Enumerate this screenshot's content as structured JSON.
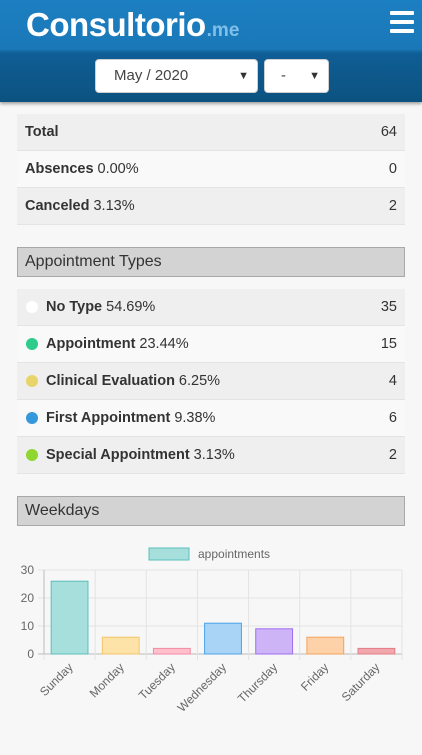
{
  "app": {
    "logo_main": "Consultorio",
    "logo_suffix": ".me"
  },
  "filters": {
    "month": "May / 2020",
    "day": "-"
  },
  "summary": [
    {
      "label": "Total",
      "pct": "",
      "value": "64"
    },
    {
      "label": "Absences",
      "pct": "0.00%",
      "value": "0"
    },
    {
      "label": "Canceled",
      "pct": "3.13%",
      "value": "2"
    }
  ],
  "appointment_types": {
    "title": "Appointment Types",
    "items": [
      {
        "label": "No Type",
        "pct": "54.69%",
        "value": "35",
        "color": "#ffffff"
      },
      {
        "label": "Appointment",
        "pct": "23.44%",
        "value": "15",
        "color": "#2ecc8a"
      },
      {
        "label": "Clinical Evaluation",
        "pct": "6.25%",
        "value": "4",
        "color": "#e9d46a"
      },
      {
        "label": "First Appointment",
        "pct": "9.38%",
        "value": "6",
        "color": "#3498db"
      },
      {
        "label": "Special Appointment",
        "pct": "3.13%",
        "value": "2",
        "color": "#8fd631"
      }
    ]
  },
  "weekdays": {
    "title": "Weekdays"
  },
  "chart_data": {
    "type": "bar",
    "categories": [
      "Sunday",
      "Monday",
      "Tuesday",
      "Wednesday",
      "Thursday",
      "Friday",
      "Saturday"
    ],
    "series": [
      {
        "name": "appointments",
        "values": [
          26,
          6,
          2,
          11,
          9,
          6,
          2
        ]
      }
    ],
    "ylim": [
      0,
      30
    ],
    "yticks": [
      0,
      10,
      20,
      30
    ],
    "grid": true,
    "legend": "top-center",
    "colors": {
      "fill": [
        "#a6dfdc",
        "#fde3a7",
        "#ffc0cb",
        "#a9d4f5",
        "#cdb4f7",
        "#fdd2a8",
        "#f2a7ad"
      ],
      "stroke": [
        "#5bbfbb",
        "#f4c56a",
        "#f48ba5",
        "#4aa3e8",
        "#9e6ef0",
        "#f5a25c",
        "#e07d87"
      ]
    }
  }
}
